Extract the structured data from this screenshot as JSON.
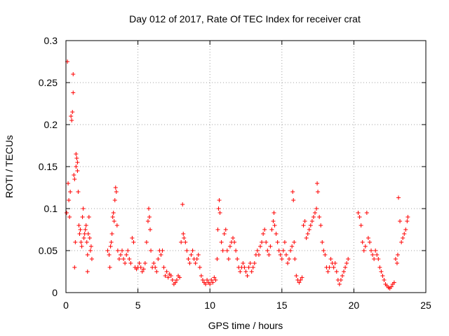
{
  "chart_data": {
    "type": "scatter",
    "title": "Day 012 of 2017, Rate Of TEC Index for receiver crat",
    "xlabel": "GPS time / hours",
    "ylabel": "ROTI / TECUs",
    "xlim": [
      0,
      25
    ],
    "ylim": [
      0,
      0.3
    ],
    "xticks": [
      0,
      5,
      10,
      15,
      20,
      25
    ],
    "yticks": [
      0,
      0.05,
      0.1,
      0.15,
      0.2,
      0.25,
      0.3
    ],
    "xtick_labels": [
      "0",
      "5",
      "10",
      "15",
      "20",
      "25"
    ],
    "ytick_labels": [
      "0",
      "0.05",
      "0.1",
      "0.15",
      "0.2",
      "0.25",
      "0.3"
    ],
    "grid": true,
    "marker": "+",
    "color": "#ff0000",
    "series": [
      {
        "name": "ROTI",
        "points": [
          [
            0.05,
            0.095
          ],
          [
            0.1,
            0.275
          ],
          [
            0.15,
            0.13
          ],
          [
            0.2,
            0.11
          ],
          [
            0.25,
            0.09
          ],
          [
            0.3,
            0.12
          ],
          [
            0.35,
            0.21
          ],
          [
            0.4,
            0.205
          ],
          [
            0.45,
            0.215
          ],
          [
            0.5,
            0.26
          ],
          [
            0.5,
            0.238
          ],
          [
            0.55,
            0.14
          ],
          [
            0.6,
            0.135
          ],
          [
            0.6,
            0.03
          ],
          [
            0.65,
            0.06
          ],
          [
            0.7,
            0.165
          ],
          [
            0.7,
            0.15
          ],
          [
            0.75,
            0.16
          ],
          [
            0.8,
            0.155
          ],
          [
            0.8,
            0.145
          ],
          [
            0.85,
            0.12
          ],
          [
            0.9,
            0.08
          ],
          [
            0.95,
            0.07
          ],
          [
            1.0,
            0.075
          ],
          [
            1.05,
            0.06
          ],
          [
            1.1,
            0.055
          ],
          [
            1.15,
            0.09
          ],
          [
            1.2,
            0.1
          ],
          [
            1.25,
            0.065
          ],
          [
            1.3,
            0.07
          ],
          [
            1.35,
            0.075
          ],
          [
            1.4,
            0.08
          ],
          [
            1.45,
            0.06
          ],
          [
            1.5,
            0.045
          ],
          [
            1.5,
            0.025
          ],
          [
            1.55,
            0.07
          ],
          [
            1.6,
            0.09
          ],
          [
            1.65,
            0.065
          ],
          [
            1.7,
            0.05
          ],
          [
            1.75,
            0.055
          ],
          [
            1.8,
            0.04
          ],
          [
            2.9,
            0.05
          ],
          [
            3.0,
            0.045
          ],
          [
            3.05,
            0.03
          ],
          [
            3.1,
            0.055
          ],
          [
            3.15,
            0.06
          ],
          [
            3.2,
            0.07
          ],
          [
            3.25,
            0.09
          ],
          [
            3.3,
            0.095
          ],
          [
            3.35,
            0.085
          ],
          [
            3.4,
            0.11
          ],
          [
            3.45,
            0.125
          ],
          [
            3.5,
            0.12
          ],
          [
            3.55,
            0.08
          ],
          [
            3.6,
            0.05
          ],
          [
            3.7,
            0.04
          ],
          [
            3.8,
            0.045
          ],
          [
            3.9,
            0.05
          ],
          [
            4.0,
            0.04
          ],
          [
            4.1,
            0.035
          ],
          [
            4.2,
            0.045
          ],
          [
            4.3,
            0.05
          ],
          [
            4.4,
            0.04
          ],
          [
            4.5,
            0.035
          ],
          [
            4.6,
            0.065
          ],
          [
            4.7,
            0.06
          ],
          [
            4.8,
            0.03
          ],
          [
            4.9,
            0.028
          ],
          [
            5.0,
            0.03
          ],
          [
            5.1,
            0.035
          ],
          [
            5.2,
            0.03
          ],
          [
            5.3,
            0.025
          ],
          [
            5.4,
            0.028
          ],
          [
            5.5,
            0.035
          ],
          [
            5.6,
            0.06
          ],
          [
            5.7,
            0.085
          ],
          [
            5.75,
            0.1
          ],
          [
            5.8,
            0.09
          ],
          [
            5.85,
            0.075
          ],
          [
            5.9,
            0.05
          ],
          [
            6.0,
            0.03
          ],
          [
            6.1,
            0.035
          ],
          [
            6.2,
            0.03
          ],
          [
            6.3,
            0.025
          ],
          [
            6.4,
            0.04
          ],
          [
            6.5,
            0.05
          ],
          [
            6.6,
            0.045
          ],
          [
            6.7,
            0.05
          ],
          [
            6.8,
            0.03
          ],
          [
            6.9,
            0.02
          ],
          [
            7.0,
            0.025
          ],
          [
            7.1,
            0.018
          ],
          [
            7.2,
            0.022
          ],
          [
            7.3,
            0.02
          ],
          [
            7.4,
            0.015
          ],
          [
            7.5,
            0.01
          ],
          [
            7.6,
            0.012
          ],
          [
            7.7,
            0.015
          ],
          [
            7.8,
            0.02
          ],
          [
            7.9,
            0.018
          ],
          [
            8.0,
            0.06
          ],
          [
            8.1,
            0.105
          ],
          [
            8.15,
            0.07
          ],
          [
            8.2,
            0.065
          ],
          [
            8.3,
            0.06
          ],
          [
            8.4,
            0.05
          ],
          [
            8.5,
            0.04
          ],
          [
            8.6,
            0.035
          ],
          [
            8.7,
            0.045
          ],
          [
            8.8,
            0.05
          ],
          [
            8.9,
            0.04
          ],
          [
            9.0,
            0.035
          ],
          [
            9.1,
            0.04
          ],
          [
            9.2,
            0.045
          ],
          [
            9.3,
            0.03
          ],
          [
            9.4,
            0.02
          ],
          [
            9.5,
            0.015
          ],
          [
            9.6,
            0.012
          ],
          [
            9.7,
            0.01
          ],
          [
            9.8,
            0.015
          ],
          [
            9.9,
            0.012
          ],
          [
            10.0,
            0.01
          ],
          [
            10.1,
            0.015
          ],
          [
            10.2,
            0.012
          ],
          [
            10.3,
            0.018
          ],
          [
            10.4,
            0.015
          ],
          [
            10.5,
            0.04
          ],
          [
            10.55,
            0.075
          ],
          [
            10.6,
            0.1
          ],
          [
            10.65,
            0.11
          ],
          [
            10.7,
            0.095
          ],
          [
            10.8,
            0.06
          ],
          [
            10.9,
            0.05
          ],
          [
            11.0,
            0.07
          ],
          [
            11.1,
            0.075
          ],
          [
            11.2,
            0.05
          ],
          [
            11.3,
            0.04
          ],
          [
            11.4,
            0.055
          ],
          [
            11.5,
            0.06
          ],
          [
            11.6,
            0.065
          ],
          [
            11.7,
            0.06
          ],
          [
            11.8,
            0.05
          ],
          [
            11.9,
            0.04
          ],
          [
            12.0,
            0.03
          ],
          [
            12.1,
            0.025
          ],
          [
            12.2,
            0.03
          ],
          [
            12.3,
            0.035
          ],
          [
            12.4,
            0.03
          ],
          [
            12.5,
            0.025
          ],
          [
            12.6,
            0.02
          ],
          [
            12.7,
            0.03
          ],
          [
            12.8,
            0.035
          ],
          [
            12.9,
            0.025
          ],
          [
            13.0,
            0.03
          ],
          [
            13.1,
            0.035
          ],
          [
            13.2,
            0.045
          ],
          [
            13.3,
            0.05
          ],
          [
            13.4,
            0.045
          ],
          [
            13.5,
            0.055
          ],
          [
            13.6,
            0.06
          ],
          [
            13.7,
            0.07
          ],
          [
            13.8,
            0.075
          ],
          [
            13.9,
            0.06
          ],
          [
            14.0,
            0.05
          ],
          [
            14.1,
            0.045
          ],
          [
            14.2,
            0.055
          ],
          [
            14.3,
            0.075
          ],
          [
            14.4,
            0.085
          ],
          [
            14.45,
            0.095
          ],
          [
            14.5,
            0.08
          ],
          [
            14.6,
            0.07
          ],
          [
            14.7,
            0.06
          ],
          [
            14.8,
            0.05
          ],
          [
            14.9,
            0.045
          ],
          [
            15.0,
            0.04
          ],
          [
            15.1,
            0.05
          ],
          [
            15.2,
            0.06
          ],
          [
            15.3,
            0.045
          ],
          [
            15.4,
            0.035
          ],
          [
            15.5,
            0.04
          ],
          [
            15.6,
            0.05
          ],
          [
            15.7,
            0.055
          ],
          [
            15.75,
            0.12
          ],
          [
            15.8,
            0.11
          ],
          [
            15.85,
            0.06
          ],
          [
            15.9,
            0.04
          ],
          [
            16.0,
            0.02
          ],
          [
            16.1,
            0.015
          ],
          [
            16.2,
            0.012
          ],
          [
            16.3,
            0.015
          ],
          [
            16.4,
            0.018
          ],
          [
            16.5,
            0.08
          ],
          [
            16.6,
            0.085
          ],
          [
            16.7,
            0.065
          ],
          [
            16.8,
            0.07
          ],
          [
            16.9,
            0.075
          ],
          [
            17.0,
            0.08
          ],
          [
            17.1,
            0.085
          ],
          [
            17.2,
            0.09
          ],
          [
            17.3,
            0.095
          ],
          [
            17.4,
            0.1
          ],
          [
            17.45,
            0.13
          ],
          [
            17.5,
            0.12
          ],
          [
            17.6,
            0.09
          ],
          [
            17.7,
            0.08
          ],
          [
            17.8,
            0.06
          ],
          [
            17.9,
            0.05
          ],
          [
            18.0,
            0.045
          ],
          [
            18.1,
            0.03
          ],
          [
            18.2,
            0.025
          ],
          [
            18.3,
            0.03
          ],
          [
            18.4,
            0.04
          ],
          [
            18.5,
            0.035
          ],
          [
            18.6,
            0.03
          ],
          [
            18.7,
            0.035
          ],
          [
            18.8,
            0.025
          ],
          [
            18.9,
            0.015
          ],
          [
            19.0,
            0.01
          ],
          [
            19.1,
            0.015
          ],
          [
            19.2,
            0.02
          ],
          [
            19.3,
            0.025
          ],
          [
            19.4,
            0.03
          ],
          [
            19.5,
            0.035
          ],
          [
            19.6,
            0.04
          ],
          [
            20.3,
            0.095
          ],
          [
            20.4,
            0.09
          ],
          [
            20.5,
            0.08
          ],
          [
            20.6,
            0.06
          ],
          [
            20.7,
            0.05
          ],
          [
            20.8,
            0.055
          ],
          [
            20.9,
            0.095
          ],
          [
            21.0,
            0.065
          ],
          [
            21.1,
            0.06
          ],
          [
            21.2,
            0.05
          ],
          [
            21.3,
            0.045
          ],
          [
            21.4,
            0.04
          ],
          [
            21.5,
            0.05
          ],
          [
            21.6,
            0.045
          ],
          [
            21.7,
            0.04
          ],
          [
            21.8,
            0.03
          ],
          [
            21.9,
            0.025
          ],
          [
            22.0,
            0.02
          ],
          [
            22.1,
            0.015
          ],
          [
            22.2,
            0.01
          ],
          [
            22.3,
            0.008
          ],
          [
            22.4,
            0.006
          ],
          [
            22.5,
            0.005
          ],
          [
            22.6,
            0.007
          ],
          [
            22.7,
            0.01
          ],
          [
            22.8,
            0.012
          ],
          [
            22.9,
            0.04
          ],
          [
            23.0,
            0.035
          ],
          [
            23.05,
            0.045
          ],
          [
            23.1,
            0.113
          ],
          [
            23.2,
            0.085
          ],
          [
            23.3,
            0.06
          ],
          [
            23.4,
            0.065
          ],
          [
            23.5,
            0.07
          ],
          [
            23.6,
            0.075
          ],
          [
            23.7,
            0.085
          ],
          [
            23.75,
            0.09
          ]
        ]
      }
    ]
  }
}
